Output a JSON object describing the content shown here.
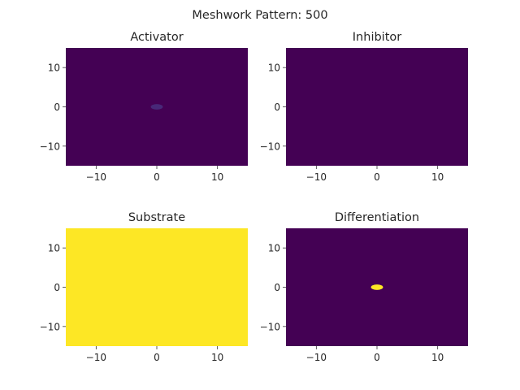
{
  "figure": {
    "suptitle": "Meshwork Pattern: 500"
  },
  "colors": {
    "low": "#440154",
    "mid": "#482878",
    "high": "#fde725",
    "tick": "#333333",
    "text": "#262626"
  },
  "chart_data": [
    {
      "type": "heatmap",
      "title": "Activator",
      "xlim": [
        -15,
        15
      ],
      "ylim": [
        -15,
        15
      ],
      "xticks": [
        -10,
        0,
        10
      ],
      "yticks": [
        10,
        0,
        -10
      ],
      "xtick_labels": [
        "−10",
        "0",
        "10"
      ],
      "ytick_labels": [
        "10",
        "0",
        "−10"
      ],
      "colormap": "viridis",
      "background_value": 0.0,
      "grid": false,
      "features": [
        {
          "cx": 0,
          "cy": 0,
          "rx": 1.0,
          "ry": 0.7,
          "value": 0.1
        }
      ]
    },
    {
      "type": "heatmap",
      "title": "Inhibitor",
      "xlim": [
        -15,
        15
      ],
      "ylim": [
        -15,
        15
      ],
      "xticks": [
        -10,
        0,
        10
      ],
      "yticks": [
        10,
        0,
        -10
      ],
      "xtick_labels": [
        "−10",
        "0",
        "10"
      ],
      "ytick_labels": [
        "10",
        "0",
        "−10"
      ],
      "colormap": "viridis",
      "background_value": 0.0,
      "grid": false,
      "features": []
    },
    {
      "type": "heatmap",
      "title": "Substrate",
      "xlim": [
        -15,
        15
      ],
      "ylim": [
        -15,
        15
      ],
      "xticks": [
        -10,
        0,
        10
      ],
      "yticks": [
        10,
        0,
        -10
      ],
      "xtick_labels": [
        "−10",
        "0",
        "10"
      ],
      "ytick_labels": [
        "10",
        "0",
        "−10"
      ],
      "colormap": "viridis",
      "background_value": 1.0,
      "grid": false,
      "features": []
    },
    {
      "type": "heatmap",
      "title": "Differentiation",
      "xlim": [
        -15,
        15
      ],
      "ylim": [
        -15,
        15
      ],
      "xticks": [
        -10,
        0,
        10
      ],
      "yticks": [
        10,
        0,
        -10
      ],
      "xtick_labels": [
        "−10",
        "0",
        "10"
      ],
      "ytick_labels": [
        "10",
        "0",
        "−10"
      ],
      "colormap": "viridis",
      "background_value": 0.0,
      "grid": false,
      "features": [
        {
          "cx": 0,
          "cy": 0,
          "rx": 1.0,
          "ry": 0.7,
          "value": 1.0
        }
      ]
    }
  ]
}
